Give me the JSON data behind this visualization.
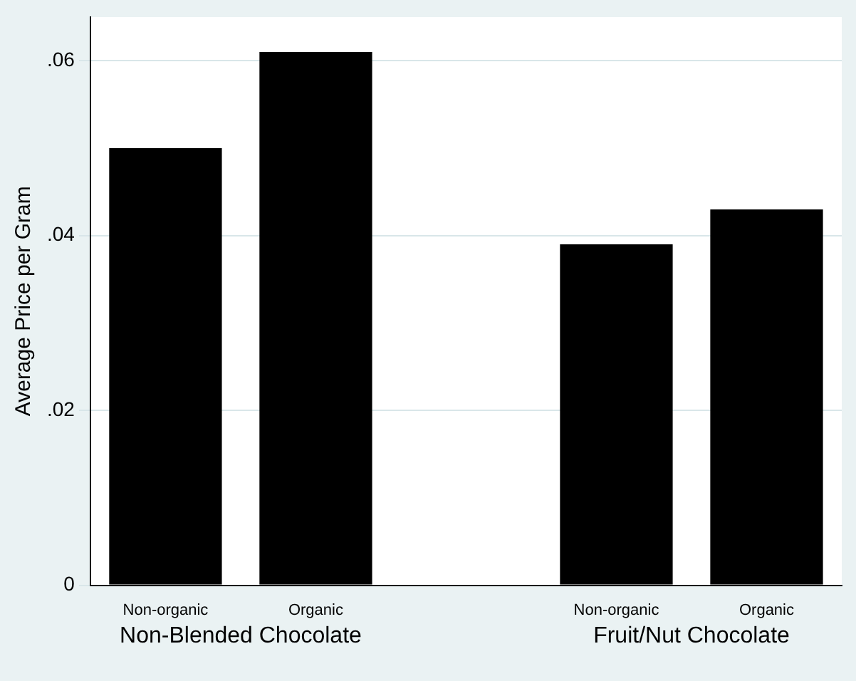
{
  "chart_data": {
    "type": "bar",
    "ylabel": "Average Price per Gram",
    "categories": [
      "Non-organic",
      "Organic",
      null,
      "Non-organic",
      "Organic"
    ],
    "values": [
      0.05,
      0.061,
      null,
      0.039,
      0.043
    ],
    "color": "#000000",
    "ylim": [
      0,
      0.065
    ],
    "yticks": [
      0,
      {
        "value": 0.02,
        "label": ".02"
      },
      {
        "value": 0.04,
        "label": ".04"
      },
      {
        "value": 0.06,
        "label": ".06"
      }
    ],
    "grid": "y",
    "legend": false,
    "annotations": [
      "Non-Blended Chocolate",
      "Fruit/Nut Chocolate"
    ]
  }
}
